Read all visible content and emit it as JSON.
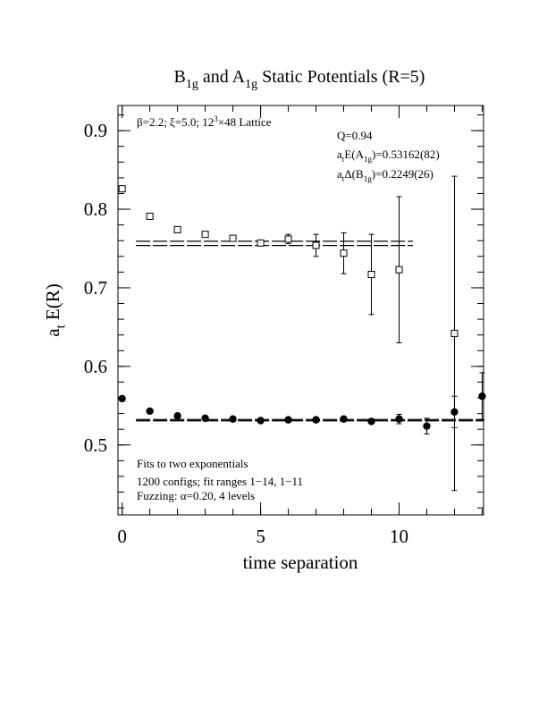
{
  "chart_data": {
    "type": "errorbar",
    "title": "B_{1g} and A_{1g} Static Potentials (R=5)",
    "xlabel": "time separation",
    "ylabel": "a_{t} E(R)",
    "annotations": [
      "β=2.2; ξ=5.0; 12^{3}×48 Lattice",
      "Q=0.94",
      "a_{t}E(A_{1g})=0.53162(82)",
      "a_{t}Δ(B_{1g})=0.2249(26)",
      "Fits to two exponentials",
      "1200 configs; fit ranges 1−14, 1−11",
      "Fuzzing: α=0.20, 4 levels"
    ],
    "xlim": [
      -0.15,
      13.05
    ],
    "ylim": [
      0.411,
      0.932
    ],
    "xticks": [
      0,
      5,
      10
    ],
    "yticks": [
      0.5,
      0.6,
      0.7,
      0.8,
      0.9
    ],
    "xminor": 1,
    "yminor": 0.02,
    "x": [
      0,
      1,
      2,
      3,
      4,
      5,
      6,
      7,
      8,
      9,
      10,
      11,
      12,
      13
    ],
    "series": [
      {
        "name": "B1g",
        "marker": "square",
        "color": "#000000",
        "values": [
          0.826,
          0.791,
          0.774,
          0.768,
          0.763,
          0.757,
          0.762,
          0.754,
          0.744,
          0.717,
          0.723,
          null,
          0.642,
          null
        ],
        "errors": [
          0.001,
          0.001,
          0.002,
          0.002,
          0.002,
          0.002,
          0.006,
          0.014,
          0.026,
          0.051,
          0.093,
          null,
          0.2,
          null
        ]
      },
      {
        "name": "A1g",
        "marker": "circle",
        "color": "#000000",
        "values": [
          0.559,
          0.543,
          0.537,
          0.534,
          0.533,
          0.531,
          0.532,
          0.532,
          0.533,
          0.53,
          0.533,
          0.524,
          0.542,
          0.562
        ],
        "errors": [
          0.001,
          0.001,
          0.001,
          0.001,
          0.001,
          0.001,
          0.002,
          0.002,
          0.003,
          0.003,
          0.006,
          0.01,
          0.02,
          0.03
        ]
      }
    ],
    "fits": [
      {
        "value": 0.7565,
        "error": 0.0027,
        "x_start": 0.5,
        "x_end": 10.5
      },
      {
        "value": 0.53162,
        "error": 0.00082,
        "x_start": 0.5,
        "x_end": 13.05
      }
    ]
  }
}
